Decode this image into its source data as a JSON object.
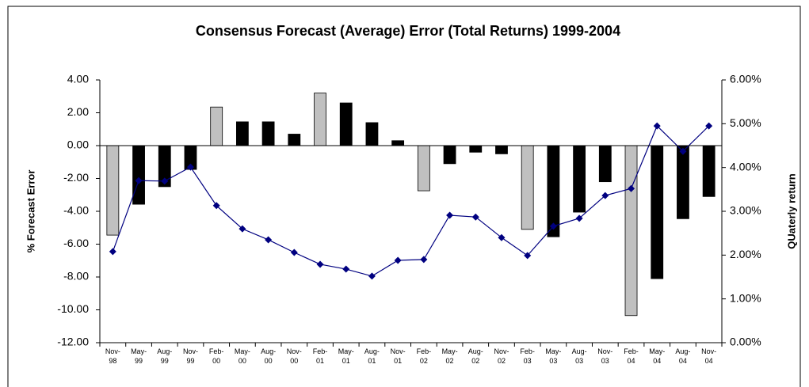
{
  "chart_data": {
    "type": "bar_line",
    "title": "Consensus Forecast (Average) Error (Total Returns) 1999-2004",
    "ylabel": "% Forecast Error",
    "y2label": "QUaterly return",
    "categories": [
      "Nov-98",
      "May-99",
      "Aug-99",
      "Nov-99",
      "Feb-00",
      "May-00",
      "Aug-00",
      "Nov-00",
      "Feb-01",
      "May-01",
      "Aug-01",
      "Nov-01",
      "Feb-02",
      "May-02",
      "Aug-02",
      "Nov-02",
      "Feb-03",
      "May-03",
      "Aug-03",
      "Nov-03",
      "Feb-04",
      "May-04",
      "Aug-04",
      "Nov-04"
    ],
    "series": [
      {
        "type": "bar",
        "color": "#000000",
        "colors": [
          "#c0c0c0",
          "#000000",
          "#000000",
          "#000000",
          "#c0c0c0",
          "#000000",
          "#000000",
          "#000000",
          "#c0c0c0",
          "#000000",
          "#000000",
          "#000000",
          "#c0c0c0",
          "#000000",
          "#000000",
          "#000000",
          "#c0c0c0",
          "#000000",
          "#000000",
          "#000000",
          "#c0c0c0",
          "#000000",
          "#000000",
          "#000000"
        ],
        "values": [
          -5.45,
          -3.57,
          -2.5,
          -1.45,
          2.35,
          1.45,
          1.45,
          0.7,
          3.2,
          2.6,
          1.4,
          0.3,
          -2.75,
          -1.1,
          -0.4,
          -0.5,
          -5.1,
          -5.55,
          -4.05,
          -2.2,
          -10.35,
          -8.1,
          -4.45,
          -3.1
        ]
      },
      {
        "type": "line",
        "axis": "y2",
        "color": "#000080",
        "values": [
          2.08,
          3.7,
          3.69,
          4.01,
          3.13,
          2.6,
          2.35,
          2.06,
          1.79,
          1.68,
          1.52,
          1.88,
          1.9,
          2.91,
          2.87,
          2.4,
          1.99,
          2.66,
          2.84,
          3.36,
          3.52,
          4.95,
          4.37,
          4.95
        ]
      }
    ],
    "ylim": [
      -12,
      4
    ],
    "yticks": [
      {
        "value": 4,
        "label": "4.00"
      },
      {
        "value": 2,
        "label": "2.00"
      },
      {
        "value": 0,
        "label": "0.00"
      },
      {
        "value": -2,
        "label": "-2.00"
      },
      {
        "value": -4,
        "label": "-4.00"
      },
      {
        "value": -6,
        "label": "-6.00"
      },
      {
        "value": -8,
        "label": "-8.00"
      },
      {
        "value": -10,
        "label": "-10.00"
      },
      {
        "value": -12,
        "label": "-12.00"
      }
    ],
    "y2lim": [
      0,
      6
    ],
    "y2ticks": [
      {
        "value": 6,
        "label": "6.00%"
      },
      {
        "value": 5,
        "label": "5.00%"
      },
      {
        "value": 4,
        "label": "4.00%"
      },
      {
        "value": 3,
        "label": "3.00%"
      },
      {
        "value": 2,
        "label": "2.00%"
      },
      {
        "value": 1,
        "label": "1.00%"
      },
      {
        "value": 0,
        "label": "0.00%"
      }
    ]
  }
}
